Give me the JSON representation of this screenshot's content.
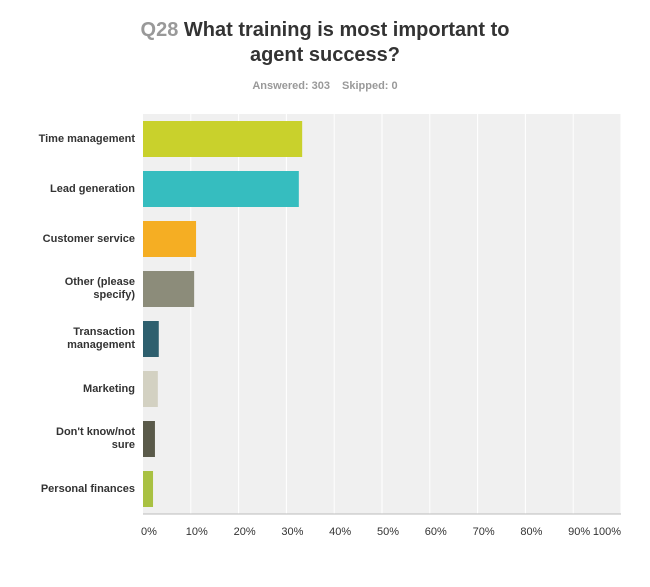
{
  "chart_data": {
    "type": "hbar",
    "question_number": "Q28",
    "title": "What training is most important to agent success?",
    "answered": "Answered: 303",
    "skipped": "Skipped: 0",
    "categories": [
      "Time management",
      "Lead generation",
      "Customer service",
      "Other (please specify)",
      "Transaction management",
      "Marketing",
      "Don't know/not sure",
      "Personal finances"
    ],
    "values": [
      33.3,
      32.6,
      11.1,
      10.7,
      3.3,
      3.1,
      2.5,
      2.1
    ],
    "colors": [
      "#c9d12c",
      "#36bdbf",
      "#f5ae23",
      "#8c8c7a",
      "#2e5f6e",
      "#d3d1c2",
      "#5a5a4a",
      "#a9c142"
    ],
    "xlim": [
      0,
      100
    ],
    "xticks": [
      {
        "value": 0,
        "label": "0%"
      },
      {
        "value": 10,
        "label": "10%"
      },
      {
        "value": 20,
        "label": "20%"
      },
      {
        "value": 30,
        "label": "30%"
      },
      {
        "value": 40,
        "label": "40%"
      },
      {
        "value": 50,
        "label": "50%"
      },
      {
        "value": 60,
        "label": "60%"
      },
      {
        "value": 70,
        "label": "70%"
      },
      {
        "value": 80,
        "label": "80%"
      },
      {
        "value": 90,
        "label": "90%"
      },
      {
        "value": 100,
        "label": "100%"
      }
    ],
    "grid": true
  }
}
